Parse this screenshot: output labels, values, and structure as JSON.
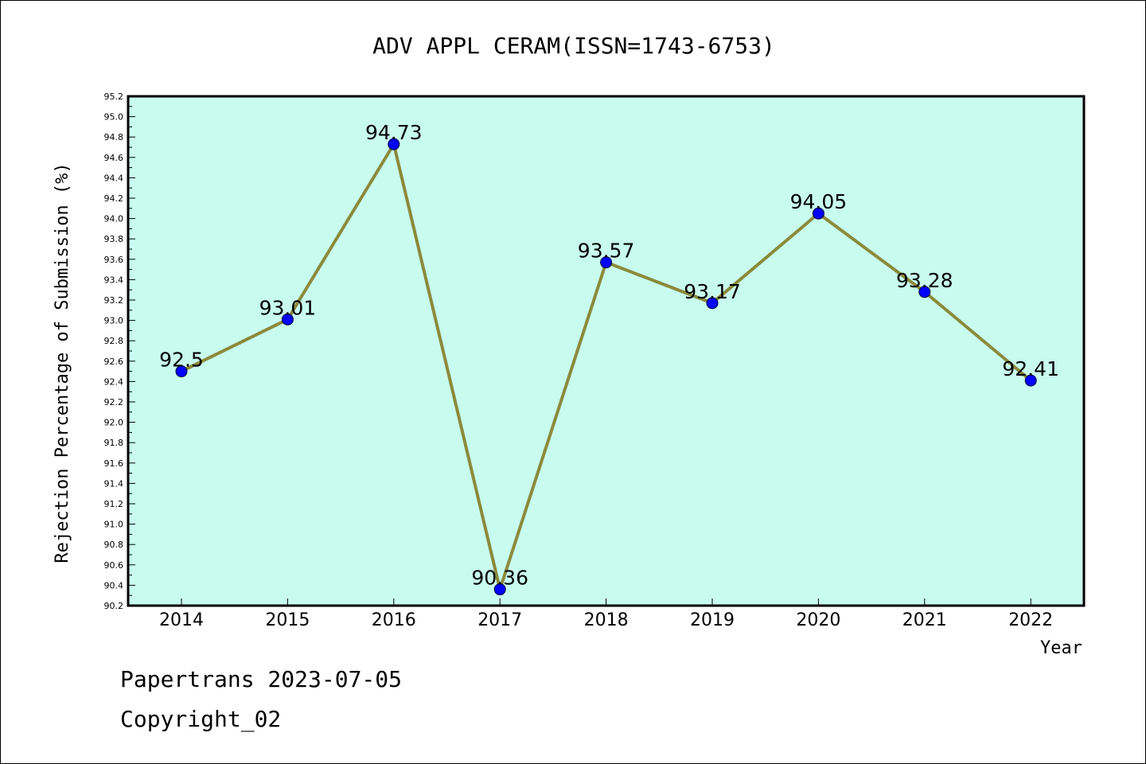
{
  "chart_data": {
    "type": "line",
    "title": "ADV APPL CERAM(ISSN=1743-6753)",
    "xlabel": "Year",
    "ylabel": "Rejection Percentage of Submission (%)",
    "categories": [
      "2014",
      "2015",
      "2016",
      "2017",
      "2018",
      "2019",
      "2020",
      "2021",
      "2022"
    ],
    "values": [
      92.5,
      93.01,
      94.73,
      90.36,
      93.57,
      93.17,
      94.05,
      93.28,
      92.41
    ],
    "data_labels": [
      "92.5",
      "93.01",
      "94.73",
      "90.36",
      "93.57",
      "93.17",
      "94.05",
      "93.28",
      "92.41"
    ],
    "ylim": [
      90.2,
      95.2
    ],
    "yticks": [
      "90.2",
      "90.4",
      "90.6",
      "90.8",
      "91.0",
      "91.2",
      "91.4",
      "91.6",
      "91.8",
      "92.0",
      "92.2",
      "92.4",
      "92.6",
      "92.8",
      "93.0",
      "93.2",
      "93.4",
      "93.6",
      "93.8",
      "94.0",
      "94.2",
      "94.4",
      "94.6",
      "94.8",
      "95.0",
      "95.2"
    ],
    "grid": false,
    "colors": {
      "plot_background": "#c8fcee",
      "line": "#8b8a3c",
      "marker": "#0000ff"
    }
  },
  "footer": {
    "line1": "Papertrans 2023-07-05",
    "line2": "Copyright_02"
  }
}
